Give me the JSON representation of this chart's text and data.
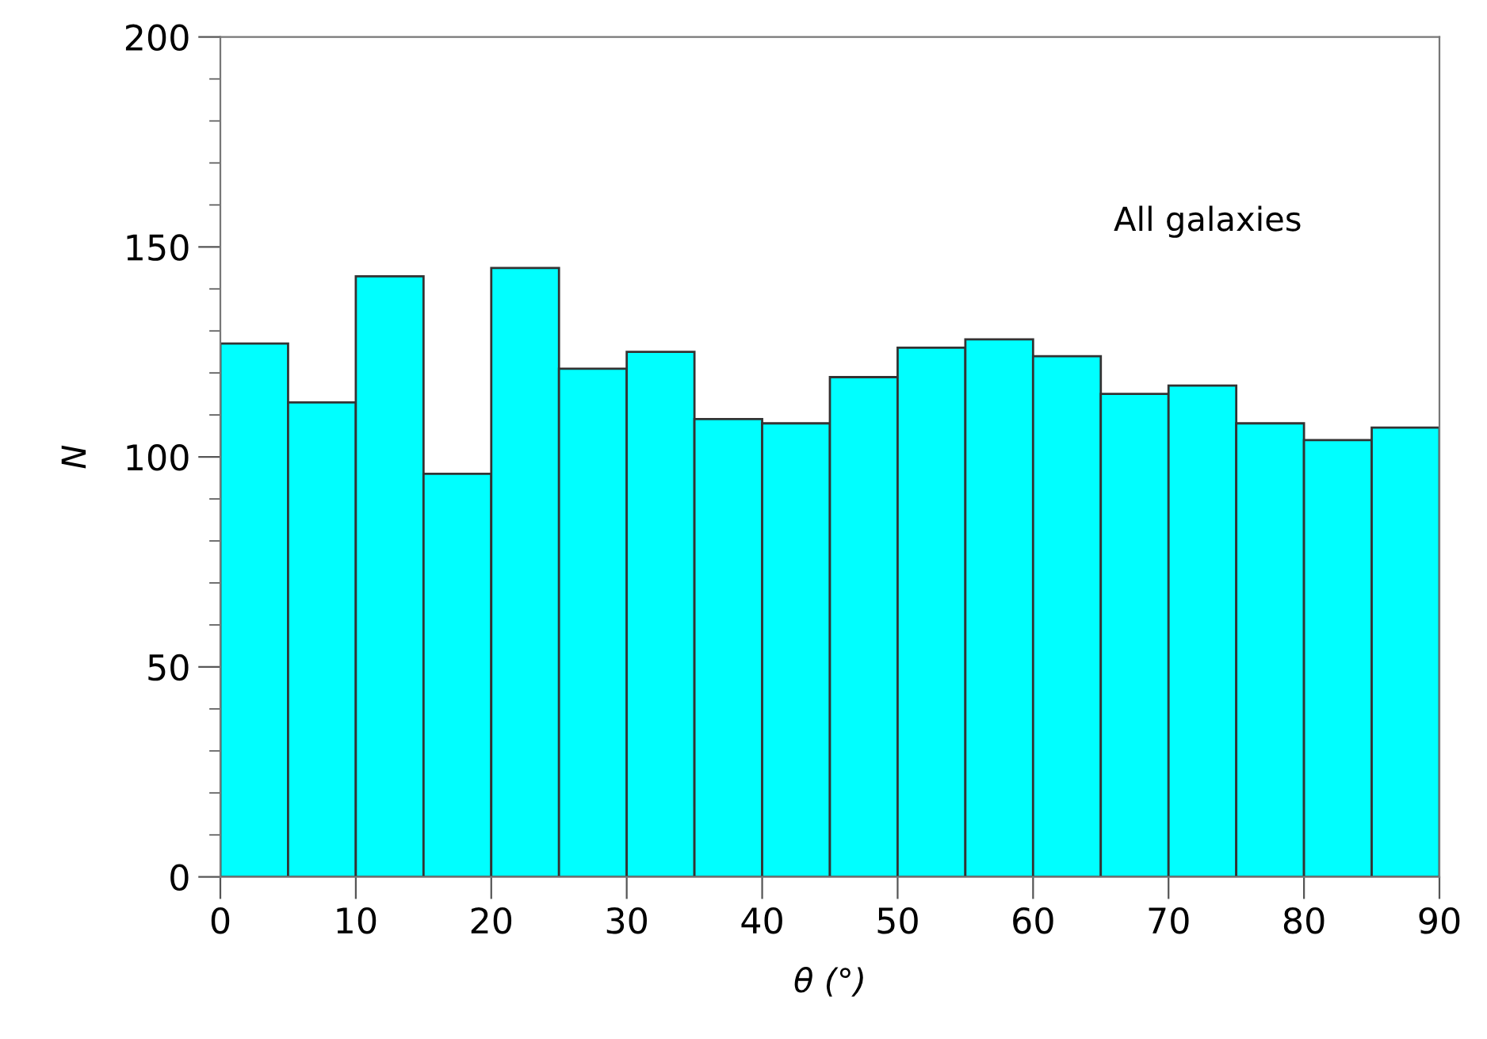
{
  "chart_data": {
    "type": "histogram",
    "xlabel": "θ (°)",
    "ylabel": "N",
    "annotations": [
      "All galaxies"
    ],
    "bins": [
      0,
      5,
      10,
      15,
      20,
      25,
      30,
      35,
      40,
      45,
      50,
      55,
      60,
      65,
      70,
      75,
      80,
      85,
      90
    ],
    "values": [
      127,
      113,
      143,
      96,
      145,
      121,
      125,
      109,
      108,
      119,
      126,
      128,
      124,
      115,
      117,
      108,
      104,
      107
    ],
    "color": "#00ffff",
    "xlim": [
      0,
      90
    ],
    "xticks": [
      0,
      10,
      20,
      30,
      40,
      50,
      60,
      70,
      80,
      90
    ],
    "ylim": [
      0,
      200
    ],
    "yticks": [
      0,
      50,
      100,
      150,
      200
    ],
    "grid": false
  }
}
